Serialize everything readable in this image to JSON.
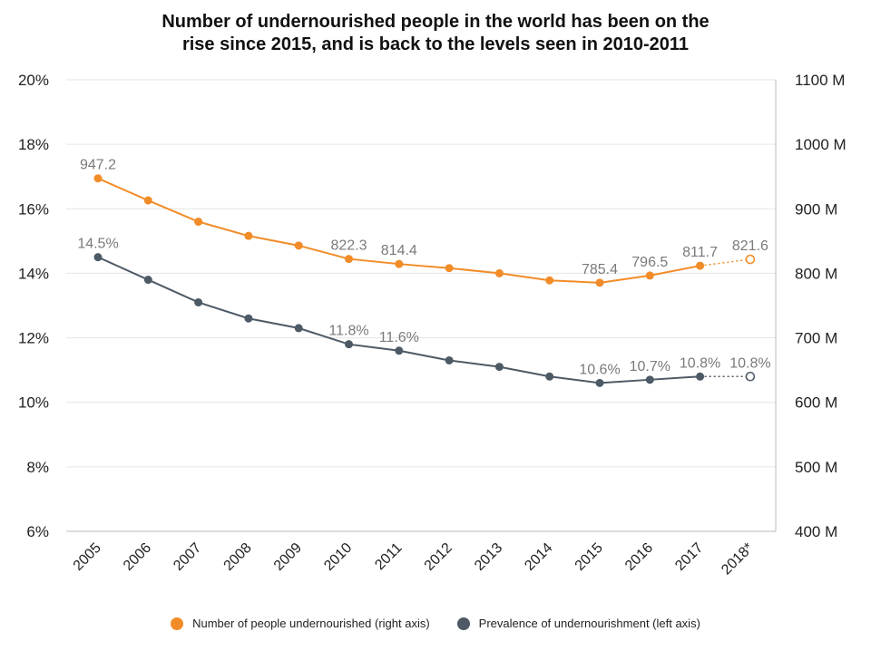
{
  "chart_data": {
    "type": "line",
    "title_lines": [
      "Number of undernourished people in the world has been on the",
      "rise since 2015, and is back to the levels seen in 2010-2011"
    ],
    "categories": [
      "2005",
      "2006",
      "2007",
      "2008",
      "2009",
      "2010",
      "2011",
      "2012",
      "2013",
      "2014",
      "2015",
      "2016",
      "2017",
      "2018*"
    ],
    "left_axis": {
      "range": [
        6,
        20
      ],
      "ticks": [
        6,
        8,
        10,
        12,
        14,
        16,
        18,
        20
      ],
      "tick_labels": [
        "6%",
        "8%",
        "10%",
        "12%",
        "14%",
        "16%",
        "18%",
        "20%"
      ]
    },
    "right_axis": {
      "range": [
        400,
        1100
      ],
      "ticks": [
        400,
        500,
        600,
        700,
        800,
        900,
        1000,
        1100
      ],
      "tick_labels": [
        "400 M",
        "500 M",
        "600 M",
        "700 M",
        "800 M",
        "900 M",
        "1000 M",
        "1100 M"
      ]
    },
    "grid": true,
    "legend_position": "bottom",
    "series": [
      {
        "name": "Number of people undernourished (right axis)",
        "axis": "right",
        "color": "#f28c28",
        "values": [
          947.2,
          913.0,
          880.0,
          858.0,
          843.0,
          822.3,
          814.4,
          808.0,
          800.0,
          789.0,
          785.4,
          796.5,
          811.7,
          821.6
        ],
        "data_labels": {
          "0": "947.2",
          "5": "822.3",
          "6": "814.4",
          "10": "785.4",
          "11": "796.5",
          "12": "811.7",
          "13": "821.6"
        },
        "projected_from_index": 12
      },
      {
        "name": "Prevalence of undernourishment (left axis)",
        "axis": "left",
        "color": "#4d5a66",
        "values": [
          14.5,
          13.8,
          13.1,
          12.6,
          12.3,
          11.8,
          11.6,
          11.3,
          11.1,
          10.8,
          10.6,
          10.7,
          10.8,
          10.8
        ],
        "data_labels": {
          "0": "14.5%",
          "5": "11.8%",
          "6": "11.6%",
          "10": "10.6%",
          "11": "10.7%",
          "12": "10.8%",
          "13": "10.8%"
        },
        "projected_from_index": 12
      }
    ]
  }
}
